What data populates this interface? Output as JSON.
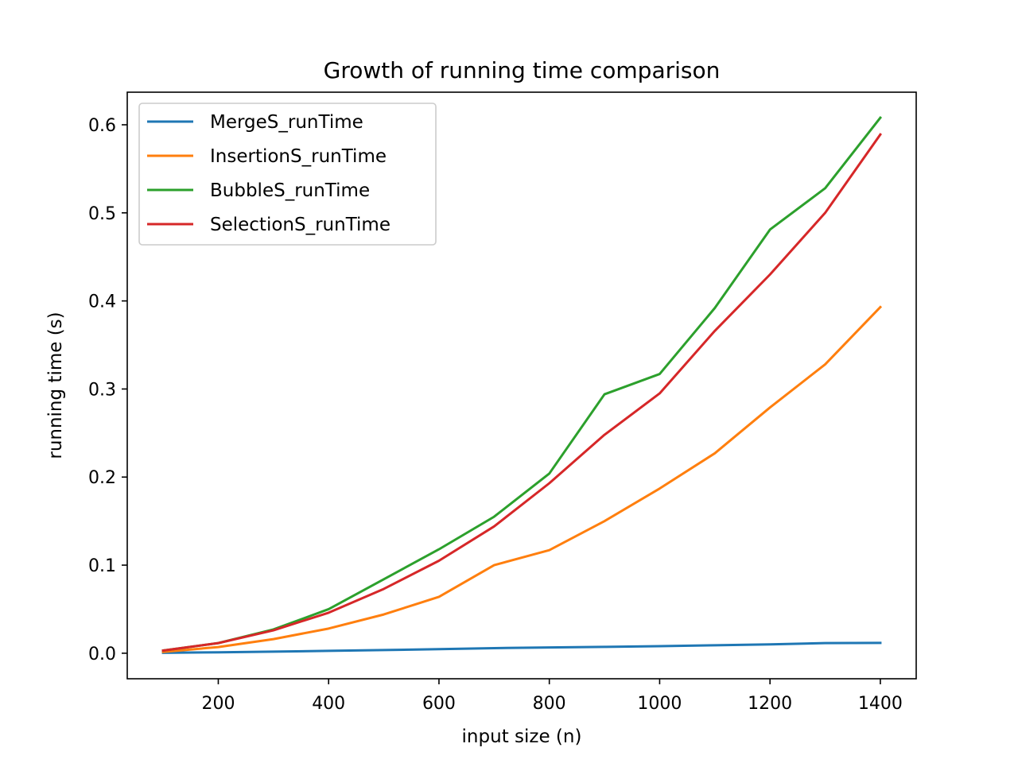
{
  "chart_data": {
    "type": "line",
    "title": "Growth of running time comparison",
    "xlabel": "input size (n)",
    "ylabel": "running time (s)",
    "xlim": [
      35,
      1465
    ],
    "ylim": [
      -0.029,
      0.637
    ],
    "xticks": [
      200,
      400,
      600,
      800,
      1000,
      1200,
      1400
    ],
    "yticks": [
      0.0,
      0.1,
      0.2,
      0.3,
      0.4,
      0.5,
      0.6
    ],
    "xtick_labels": [
      "200",
      "400",
      "600",
      "800",
      "1000",
      "1200",
      "1400"
    ],
    "ytick_labels": [
      "0.0",
      "0.1",
      "0.2",
      "0.3",
      "0.4",
      "0.5",
      "0.6"
    ],
    "grid": false,
    "legend_position": "upper-left",
    "x": [
      100,
      200,
      300,
      400,
      500,
      600,
      700,
      800,
      900,
      1000,
      1100,
      1200,
      1300,
      1400
    ],
    "series": [
      {
        "name": "MergeS_runTime",
        "color": "#1f77b4",
        "values": [
          0.0005,
          0.001,
          0.0018,
          0.0027,
          0.0036,
          0.0046,
          0.0058,
          0.0065,
          0.0072,
          0.008,
          0.009,
          0.01,
          0.0115,
          0.0117
        ]
      },
      {
        "name": "InsertionS_runTime",
        "color": "#ff7f0e",
        "values": [
          0.0015,
          0.007,
          0.016,
          0.028,
          0.044,
          0.064,
          0.1,
          0.117,
          0.15,
          0.187,
          0.227,
          0.279,
          0.328,
          0.393
        ]
      },
      {
        "name": "BubbleS_runTime",
        "color": "#2ca02c",
        "values": [
          0.003,
          0.0115,
          0.027,
          0.05,
          0.084,
          0.118,
          0.155,
          0.204,
          0.294,
          0.317,
          0.392,
          0.481,
          0.528,
          0.608
        ]
      },
      {
        "name": "SelectionS_runTime",
        "color": "#d62728",
        "values": [
          0.003,
          0.0115,
          0.026,
          0.046,
          0.073,
          0.105,
          0.144,
          0.193,
          0.248,
          0.295,
          0.366,
          0.43,
          0.5,
          0.589
        ]
      }
    ]
  }
}
